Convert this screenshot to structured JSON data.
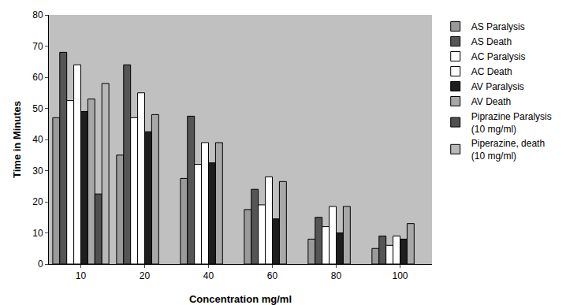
{
  "chart_data": {
    "type": "bar",
    "x_label": "Concentration mg/ml",
    "y_label": "Time in Minutes",
    "categories": [
      "10",
      "20",
      "40",
      "60",
      "80",
      "100"
    ],
    "series": [
      {
        "name": "AS Paralysis",
        "color": "#9a9a9a",
        "values": [
          47,
          35,
          27.5,
          17.5,
          8,
          5
        ]
      },
      {
        "name": "AS Death",
        "color": "#555555",
        "values": [
          68,
          64,
          47.5,
          24,
          15,
          9
        ]
      },
      {
        "name": "AC Paralysis",
        "color": "#ffffff",
        "values": [
          52.5,
          47,
          32,
          19,
          12,
          6
        ]
      },
      {
        "name": "AC Death",
        "color": "#ffffff",
        "values": [
          64,
          55,
          39,
          28,
          18.5,
          9
        ]
      },
      {
        "name": "AV Paralysis",
        "color": "#1e1e1e",
        "values": [
          49,
          42.5,
          32.5,
          14.5,
          10,
          8
        ]
      },
      {
        "name": "AV Death",
        "color": "#a8a8a8",
        "values": [
          53,
          48,
          39,
          26.5,
          18.5,
          13
        ]
      },
      {
        "name": "Piprazine Paralysis (10 mg/ml)",
        "color": "#505050",
        "values": [
          22.5,
          null,
          null,
          null,
          null,
          null
        ]
      },
      {
        "name": "Piperazine, death (10 mg/ml)",
        "color": "#b8b8b8",
        "values": [
          58,
          null,
          null,
          null,
          null,
          null
        ]
      }
    ],
    "ylim": [
      0,
      80
    ],
    "yticks": [
      0,
      10,
      20,
      30,
      40,
      50,
      60,
      70,
      80
    ],
    "grid": false,
    "legend": "right"
  }
}
